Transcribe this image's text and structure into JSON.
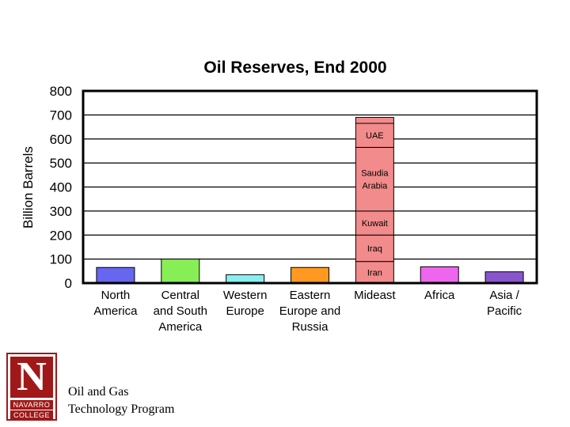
{
  "chart_data": {
    "type": "bar",
    "stacked": true,
    "title": "Oil Reserves, End 2000",
    "xlabel": "",
    "ylabel": "Billion Barrels",
    "ylim": [
      0,
      800
    ],
    "yticks": [
      0,
      100,
      200,
      300,
      400,
      500,
      600,
      700,
      800
    ],
    "grid": true,
    "categories": [
      {
        "lines": [
          "North",
          "America"
        ],
        "value": 65,
        "color": "#6666ee"
      },
      {
        "lines": [
          "Central",
          "and South",
          "America"
        ],
        "value": 100,
        "color": "#88ee55"
      },
      {
        "lines": [
          "Western",
          "Europe"
        ],
        "value": 35,
        "color": "#88eeee"
      },
      {
        "lines": [
          "Eastern",
          "Europe and",
          "Russia"
        ],
        "value": 65,
        "color": "#ff9922"
      },
      {
        "lines": [
          "Mideast"
        ],
        "value": 690,
        "color": "#f28b8b",
        "segments": [
          {
            "label": [
              "Iran"
            ],
            "value": 90
          },
          {
            "label": [
              "Iraq"
            ],
            "value": 110
          },
          {
            "label": [
              "Kuwait"
            ],
            "value": 100
          },
          {
            "label": [
              "Saudia",
              "Arabia"
            ],
            "value": 265
          },
          {
            "label": [
              "UAE"
            ],
            "value": 100
          },
          {
            "label": [],
            "value": 25
          }
        ]
      },
      {
        "lines": [
          "Africa"
        ],
        "value": 68,
        "color": "#ee66ee"
      },
      {
        "lines": [
          "Asia /",
          "Pacific"
        ],
        "value": 47,
        "color": "#8855cc"
      }
    ]
  },
  "footer": {
    "logo_letter": "N",
    "logo_line1": "NAVARRO",
    "logo_line2": "COLLEGE",
    "caption_line1": "Oil and Gas",
    "caption_line2": "Technology Program"
  }
}
